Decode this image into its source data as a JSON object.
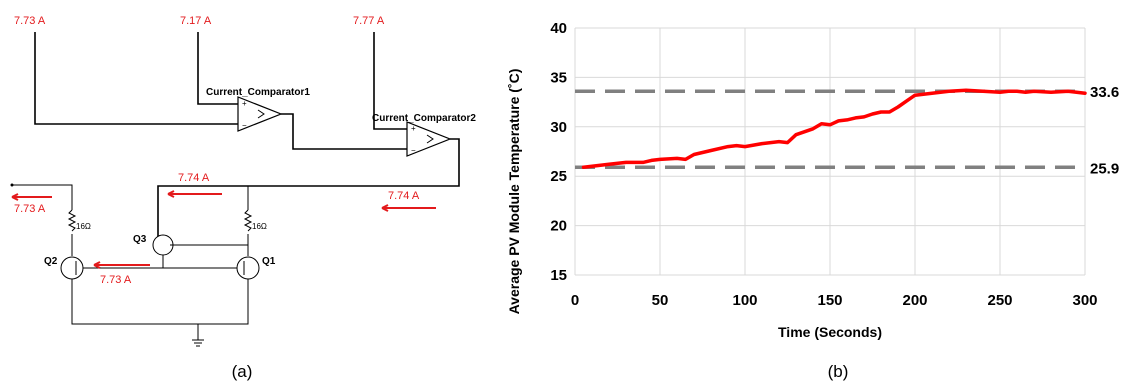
{
  "circuit": {
    "top_currents": [
      "7.73 A",
      "7.17 A",
      "7.77 A"
    ],
    "comparator1_label": "Current_Comparator1",
    "comparator2_label": "Current_Comparator2",
    "branch_currents": [
      "7.73 A",
      "7.74 A",
      "7.74 A",
      "7.73 A"
    ],
    "resistor_label": "16Ω",
    "transistors": [
      "Q3",
      "Q2",
      "Q1"
    ],
    "caption": "(a)"
  },
  "chart_data": {
    "type": "line",
    "title": "",
    "xlabel": "Time (Seconds)",
    "ylabel": "Average PV Module Temperature (˚C)",
    "xlim": [
      0,
      300
    ],
    "ylim": [
      15,
      40
    ],
    "xticks": [
      0,
      50,
      100,
      150,
      200,
      250,
      300
    ],
    "yticks": [
      15,
      20,
      25,
      30,
      35,
      40
    ],
    "grid": true,
    "series": [
      {
        "color": "#ff0000",
        "x": [
          5,
          10,
          20,
          30,
          40,
          45,
          50,
          60,
          65,
          70,
          80,
          90,
          95,
          100,
          110,
          120,
          125,
          130,
          140,
          145,
          150,
          155,
          160,
          165,
          170,
          175,
          180,
          185,
          190,
          195,
          200,
          205,
          210,
          215,
          220,
          230,
          240,
          250,
          255,
          260,
          265,
          270,
          280,
          290,
          300
        ],
        "y": [
          25.9,
          26.0,
          26.2,
          26.4,
          26.4,
          26.6,
          26.7,
          26.8,
          26.7,
          27.2,
          27.6,
          28.0,
          28.1,
          28.0,
          28.3,
          28.5,
          28.4,
          29.2,
          29.8,
          30.3,
          30.2,
          30.6,
          30.7,
          30.9,
          31.0,
          31.3,
          31.5,
          31.5,
          32.0,
          32.6,
          33.2,
          33.3,
          33.4,
          33.5,
          33.6,
          33.7,
          33.6,
          33.5,
          33.6,
          33.6,
          33.5,
          33.6,
          33.5,
          33.6,
          33.4
        ]
      }
    ],
    "reference_lines": [
      {
        "value": 33.6,
        "label": "33.6",
        "color": "#808080",
        "style": "dashed"
      },
      {
        "value": 25.9,
        "label": "25.9",
        "color": "#808080",
        "style": "dashed"
      }
    ],
    "caption": "(b)"
  }
}
